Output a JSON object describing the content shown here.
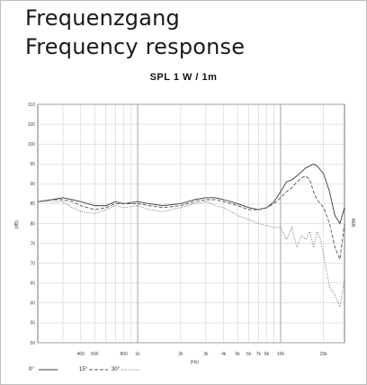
{
  "header": {
    "title_de": "Frequenzgang",
    "title_en": "Frequency response"
  },
  "chart_data": {
    "type": "line",
    "title": "SPL 1 W / 1m",
    "xlabel": "(Hz)",
    "ylabel": "(dB)",
    "right_label": "AEB",
    "xscale": "log",
    "xlim": [
      200,
      28000
    ],
    "ylim": [
      50,
      110
    ],
    "yticks": [
      50,
      55,
      60,
      65,
      70,
      75,
      80,
      85,
      90,
      95,
      100,
      105,
      110
    ],
    "xticks": [
      {
        "value": 400,
        "label": "400"
      },
      {
        "value": 500,
        "label": "500"
      },
      {
        "value": 800,
        "label": "800"
      },
      {
        "value": 1000,
        "label": "1k"
      },
      {
        "value": 2000,
        "label": "2k"
      },
      {
        "value": 3000,
        "label": "3k"
      },
      {
        "value": 4000,
        "label": "4k"
      },
      {
        "value": 5000,
        "label": "5k"
      },
      {
        "value": 6000,
        "label": "6k"
      },
      {
        "value": 7000,
        "label": "7k"
      },
      {
        "value": 8000,
        "label": "8k"
      },
      {
        "value": 10000,
        "label": "10k"
      },
      {
        "value": 20000,
        "label": "20k"
      }
    ],
    "grid": true,
    "legend_position": "bottom-left",
    "series": [
      {
        "name": "0°",
        "style": "solid",
        "color": "#3a3a3a",
        "x": [
          200,
          250,
          300,
          350,
          400,
          500,
          600,
          700,
          800,
          1000,
          1200,
          1500,
          2000,
          2500,
          3000,
          3500,
          4000,
          4500,
          5000,
          6000,
          7000,
          8000,
          9000,
          10000,
          11000,
          12000,
          13000,
          14000,
          15000,
          16000,
          17000,
          18000,
          20000,
          22000,
          24000,
          26000,
          28000
        ],
        "y": [
          85.5,
          86,
          86.5,
          86,
          85.5,
          84.5,
          84.5,
          85.5,
          85,
          85.5,
          85,
          84.5,
          85,
          86,
          86.5,
          86.5,
          86,
          85.5,
          85,
          84,
          83.5,
          84,
          85.5,
          88,
          90.5,
          91,
          92,
          93,
          94,
          94.5,
          95,
          94.5,
          92.5,
          88,
          82,
          80,
          84
        ]
      },
      {
        "name": "15°",
        "style": "dashed",
        "color": "#555555",
        "x": [
          200,
          250,
          300,
          350,
          400,
          500,
          600,
          700,
          800,
          1000,
          1200,
          1500,
          2000,
          2500,
          3000,
          3500,
          4000,
          4500,
          5000,
          6000,
          7000,
          8000,
          9000,
          10000,
          11000,
          12000,
          13000,
          14000,
          15000,
          16000,
          17000,
          18000,
          20000,
          22000,
          24000,
          26000,
          28000
        ],
        "y": [
          85.5,
          86,
          86,
          85.5,
          84.5,
          83.5,
          84,
          85,
          85,
          85,
          84.5,
          84,
          84.5,
          85.5,
          86,
          86,
          85.5,
          85,
          84.5,
          83.5,
          83.5,
          84,
          85,
          86.5,
          88,
          89,
          90.5,
          91.5,
          92,
          91,
          88,
          86,
          84,
          80,
          74,
          71,
          80
        ]
      },
      {
        "name": "30°",
        "style": "dotted",
        "color": "#666666",
        "x": [
          200,
          250,
          300,
          350,
          400,
          500,
          600,
          700,
          800,
          1000,
          1200,
          1500,
          2000,
          2500,
          3000,
          3500,
          4000,
          4500,
          5000,
          6000,
          7000,
          8000,
          9000,
          10000,
          11000,
          12000,
          13000,
          14000,
          15000,
          16000,
          17000,
          18000,
          19000,
          20000,
          22000,
          24000,
          26000,
          28000
        ],
        "y": [
          85.5,
          85.5,
          85.5,
          84,
          83,
          82.5,
          83.5,
          84.5,
          84,
          84.5,
          83.5,
          83,
          84,
          85,
          85.5,
          84.5,
          84,
          83,
          82,
          81,
          80,
          79.5,
          79,
          79,
          76,
          79,
          74,
          77,
          76,
          78,
          74,
          78,
          76,
          72,
          64,
          62,
          59,
          66
        ]
      }
    ],
    "legend": [
      {
        "label": "0°"
      },
      {
        "label": "15°"
      },
      {
        "label": "30°"
      }
    ]
  }
}
